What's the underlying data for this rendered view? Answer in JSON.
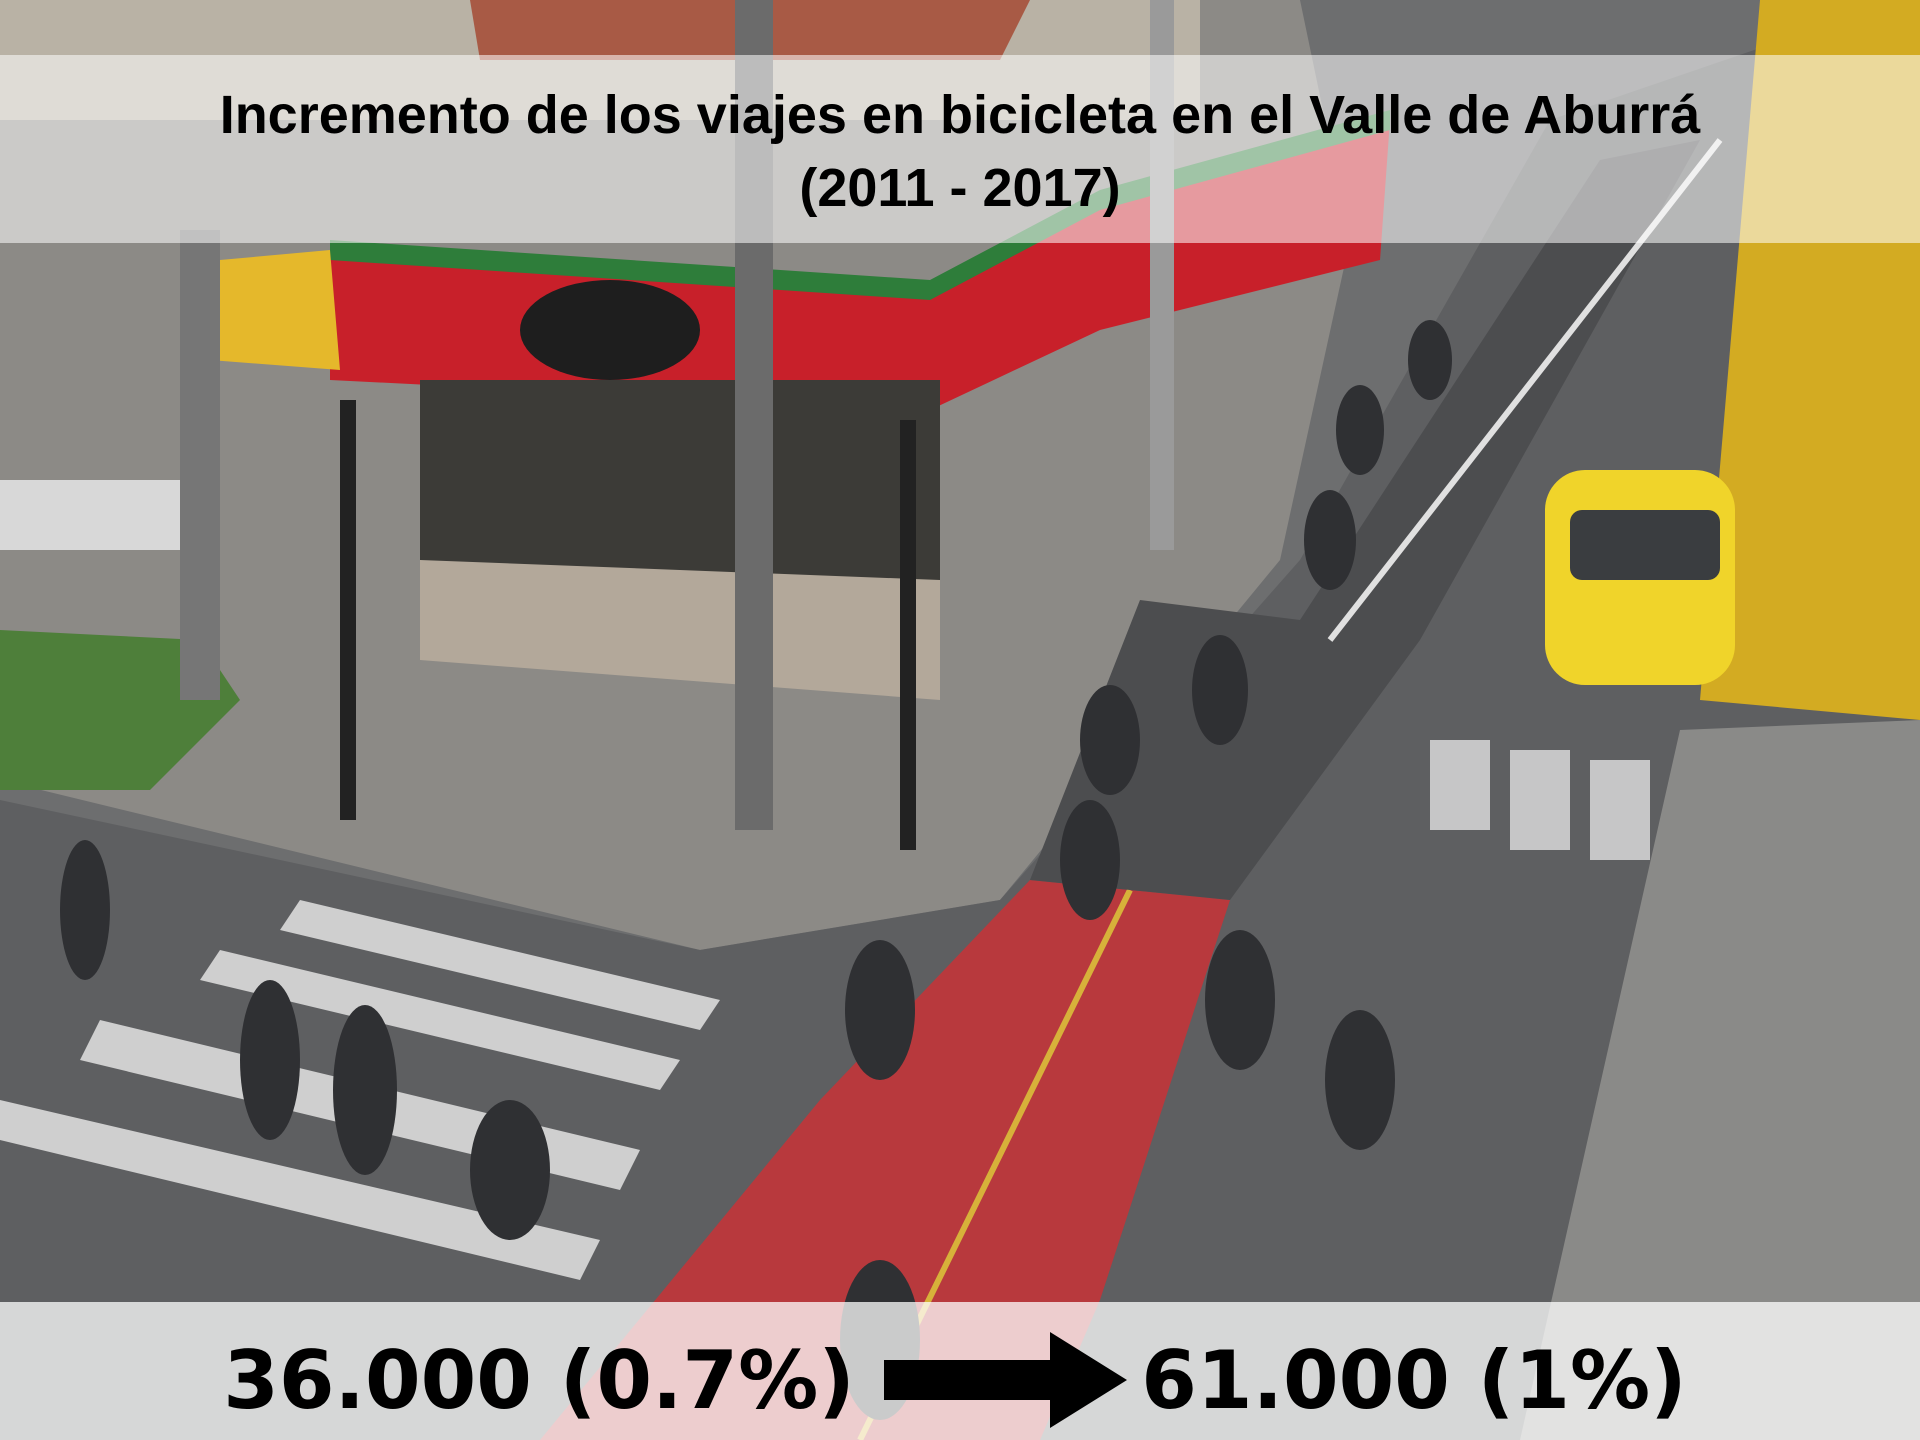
{
  "title": {
    "line1": "Incremento de los viajes en bicicleta en el Valle de Aburrá",
    "line2": "(2011 - 2017)"
  },
  "comparison": {
    "before": "36.000 (0.7%)",
    "after": "61.000 (1%)"
  }
}
